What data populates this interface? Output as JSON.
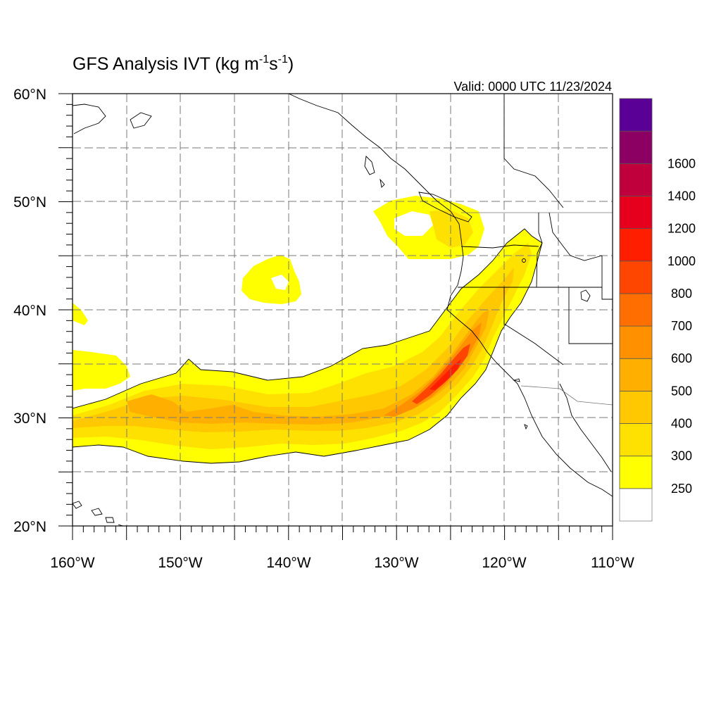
{
  "title": "GFS Analysis IVT (kg m",
  "title_unit_parts": [
    "-1",
    "s",
    "-1",
    ")"
  ],
  "valid_time": "Valid: 0000 UTC 11/23/2024",
  "map": {
    "lon_range": [
      -160,
      -110
    ],
    "lat_range": [
      20,
      60
    ],
    "lon_ticks": [
      "160°W",
      "150°W",
      "140°W",
      "130°W",
      "120°W",
      "110°W"
    ],
    "lat_ticks": [
      "20°N",
      "30°N",
      "40°N",
      "50°N",
      "60°N"
    ],
    "gridlines": "dashed every 5 degrees"
  },
  "colorbar": {
    "labels": [
      "250",
      "300",
      "400",
      "500",
      "600",
      "700",
      "800",
      "1000",
      "1200",
      "1400",
      "1600"
    ],
    "bins": [
      {
        "label": "",
        "color": "#ffffff"
      },
      {
        "label": "250",
        "color": "#ffff00"
      },
      {
        "label": "300",
        "color": "#ffe100"
      },
      {
        "label": "400",
        "color": "#ffc800"
      },
      {
        "label": "500",
        "color": "#ffaf00"
      },
      {
        "label": "600",
        "color": "#ff9100"
      },
      {
        "label": "700",
        "color": "#ff6e00"
      },
      {
        "label": "800",
        "color": "#ff4600"
      },
      {
        "label": "1000",
        "color": "#ff1e00"
      },
      {
        "label": "1200",
        "color": "#e6001e"
      },
      {
        "label": "1400",
        "color": "#c0003c"
      },
      {
        "label": "1600",
        "color": "#8c0064"
      },
      {
        "label": "",
        "color": "#5a0096"
      }
    ]
  },
  "chart_data": {
    "type": "heatmap",
    "variable": "IVT",
    "units": "kg m-1 s-1",
    "features": [
      {
        "name": "atmospheric river",
        "max_ivt_approx": 1000,
        "core_lat": 34.5,
        "core_lon": -124.5
      },
      {
        "name": "offshore blob",
        "ivt_approx": 280,
        "center_lat": 42.5,
        "center_lon": -140
      },
      {
        "name": "pacific northwest blob",
        "ivt_approx": 300,
        "center_lat": 48.5,
        "center_lon": -126
      }
    ]
  }
}
